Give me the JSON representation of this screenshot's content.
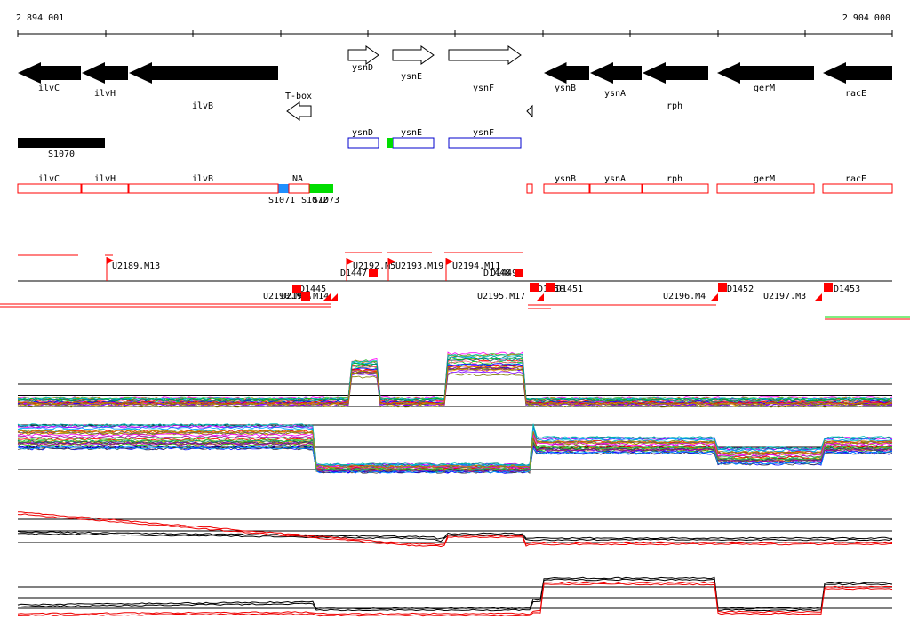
{
  "coordinates": {
    "start": "2 894 001",
    "end": "2 904 000"
  },
  "genes": [
    {
      "name": "ilvC",
      "strand": "-"
    },
    {
      "name": "ilvH",
      "strand": "-"
    },
    {
      "name": "ilvB",
      "strand": "-"
    },
    {
      "name": "ysnD",
      "strand": "+"
    },
    {
      "name": "ysnE",
      "strand": "+"
    },
    {
      "name": "ysnF",
      "strand": "+"
    },
    {
      "name": "ysnB",
      "strand": "-"
    },
    {
      "name": "ysnA",
      "strand": "-"
    },
    {
      "name": "rph",
      "strand": "-"
    },
    {
      "name": "gerM",
      "strand": "-"
    },
    {
      "name": "racE",
      "strand": "-"
    }
  ],
  "rna_features": [
    {
      "name": "T-box",
      "strand": "-"
    }
  ],
  "segment_labels": {
    "top_segment": "S1070",
    "blue_segment": "S1071",
    "overlapping_labels": "S1072",
    "green_segment": "S1073",
    "na_label": "NA"
  },
  "annotation_boxes_blue": [
    "ysnD",
    "ysnE",
    "ysnF"
  ],
  "annotation_boxes_red": [
    "ilvC",
    "ilvH",
    "ilvB",
    "ysnB",
    "ysnA",
    "rph",
    "gerM",
    "racE"
  ],
  "upshifts": [
    {
      "label": "U2189.M13",
      "strand": "+"
    },
    {
      "label": "U2192.M5",
      "strand": "+"
    },
    {
      "label": "U2193.M19",
      "strand": "+"
    },
    {
      "label": "U2194.M11",
      "strand": "+"
    },
    {
      "label": "U2190.M14",
      "strand": "-"
    },
    {
      "label": "U2191.M14",
      "strand": "-"
    },
    {
      "label": "U2195.M17",
      "strand": "-"
    },
    {
      "label": "U2196.M4",
      "strand": "-"
    },
    {
      "label": "U2197.M3",
      "strand": "-"
    }
  ],
  "downshifts": [
    {
      "label": "D1445",
      "strand": "-"
    },
    {
      "label": "D1447",
      "strand": "+"
    },
    {
      "label": "D1448",
      "strand": "+"
    },
    {
      "label": "D1449",
      "strand": "+"
    },
    {
      "label": "D1450",
      "strand": "-"
    },
    {
      "label": "D1451",
      "strand": "-"
    },
    {
      "label": "D1452",
      "strand": "-"
    },
    {
      "label": "D1453",
      "strand": "-"
    }
  ],
  "profile_panels": [
    {
      "id": "plus-strand-profiles",
      "tracks": "multicolor"
    },
    {
      "id": "minus-strand-profiles",
      "tracks": "multicolor"
    },
    {
      "id": "plus-strand-summary",
      "tracks": "black-red"
    },
    {
      "id": "minus-strand-summary",
      "tracks": "black-red"
    }
  ],
  "colors": {
    "gene": "#000000",
    "annotation_red": "#ff0000",
    "annotation_blue": "#0000cc",
    "segment_blue": "#1e90ff",
    "segment_green": "#00dd00",
    "summary_black": "#000000",
    "summary_red": "#ee0000"
  }
}
